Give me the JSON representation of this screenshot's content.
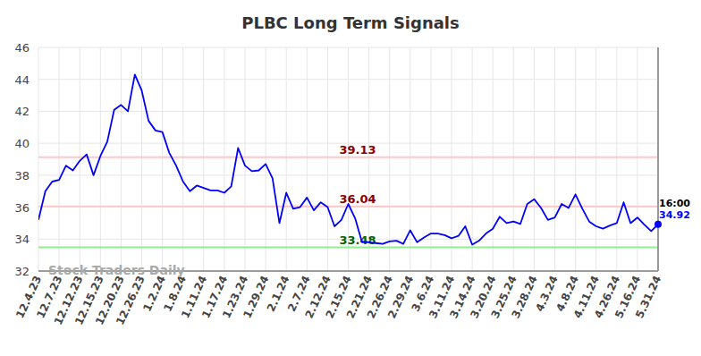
{
  "chart_data": {
    "type": "line",
    "title": "PLBC Long Term Signals",
    "watermark": "Stock Traders Daily",
    "last_point_label": "16:00",
    "categories": [
      "12.4.23",
      null,
      null,
      "12.7.23",
      null,
      null,
      "12.12.23",
      null,
      null,
      "12.15.23",
      null,
      null,
      "12.20.23",
      null,
      null,
      "12.26.23",
      null,
      null,
      "1.2.24",
      null,
      null,
      "1.8.24",
      null,
      null,
      "1.11.24",
      null,
      null,
      "1.17.24",
      null,
      null,
      "1.23.24",
      null,
      null,
      "1.29.24",
      null,
      null,
      "2.1.24",
      null,
      null,
      "2.7.24",
      null,
      null,
      "2.12.24",
      null,
      null,
      "2.15.24",
      null,
      null,
      "2.21.24",
      null,
      null,
      "2.26.24",
      null,
      null,
      "2.29.24",
      null,
      null,
      "3.6.24",
      null,
      null,
      "3.11.24",
      null,
      null,
      "3.14.24",
      null,
      null,
      "3.20.24",
      null,
      null,
      "3.25.24",
      null,
      null,
      "3.28.24",
      null,
      null,
      "4.3.24",
      null,
      null,
      "4.8.24",
      null,
      null,
      "4.11.24",
      null,
      null,
      "4.26.24",
      null,
      null,
      "5.16.24",
      null,
      null,
      "5.31.24"
    ],
    "series": [
      {
        "name": "PLBC",
        "color": "#0000ff",
        "values": [
          35.2,
          37.0,
          37.6,
          37.7,
          38.6,
          38.3,
          38.9,
          39.3,
          38.0,
          39.2,
          40.1,
          42.1,
          42.4,
          42.0,
          44.3,
          43.3,
          41.4,
          40.8,
          40.7,
          39.4,
          38.6,
          37.6,
          37.0,
          37.35,
          37.2,
          37.05,
          37.05,
          36.9,
          37.3,
          39.7,
          38.6,
          38.25,
          38.3,
          38.7,
          37.8,
          35.0,
          36.9,
          35.9,
          36.0,
          36.6,
          35.8,
          36.3,
          36.0,
          34.8,
          35.2,
          36.2,
          35.3,
          33.8,
          33.8,
          33.75,
          33.7,
          33.85,
          33.9,
          33.7,
          34.55,
          33.8,
          34.1,
          34.35,
          34.35,
          34.25,
          34.05,
          34.2,
          34.8,
          33.65,
          33.9,
          34.35,
          34.65,
          35.4,
          35.0,
          35.1,
          34.95,
          36.2,
          36.5,
          35.95,
          35.2,
          35.35,
          36.2,
          35.95,
          36.8,
          35.9,
          35.1,
          34.8,
          34.65,
          34.85,
          35.0,
          36.3,
          35.0,
          35.35,
          34.9,
          34.5,
          34.92
        ]
      }
    ],
    "reference_lines": [
      {
        "value": 39.13,
        "color": "#ffc8c8"
      },
      {
        "value": 36.04,
        "color": "#ffc8c8"
      },
      {
        "value": 33.48,
        "color": "#90ee90"
      }
    ],
    "ylim": [
      32,
      46
    ],
    "yticks": [
      32,
      34,
      36,
      38,
      40,
      42,
      44,
      46
    ],
    "grid": true
  }
}
